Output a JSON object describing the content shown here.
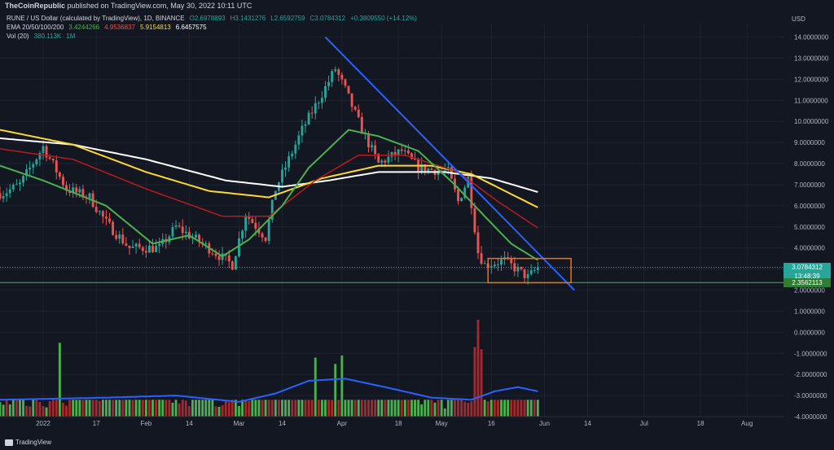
{
  "header": {
    "brand": "TheCoinRepublic",
    "publish_text": "published on TradingView.com, May 30, 2022 10:11 UTC"
  },
  "legend": {
    "symbol_line": "RUNE / US Dollar (calculated by TradingView), 1D, BINANCE",
    "ohlc": [
      "O2.6978893",
      "H3.1431276",
      "L2.6592759",
      "C3.0784312",
      "+0.3809550 (+14.12%)"
    ],
    "ema_label": "EMA 20/50/100/200",
    "ema_values": [
      "3.4244266",
      "4.9536837",
      "5.9154813",
      "6.6457575"
    ],
    "vol_label": "Vol (20)",
    "vol_values": [
      "380.113K",
      "1M"
    ]
  },
  "axis": {
    "currency": "USD",
    "y_ticks": [
      "14.0000000",
      "13.0000000",
      "12.0000000",
      "11.0000000",
      "10.0000000",
      "9.0000000",
      "8.0000000",
      "7.0000000",
      "6.0000000",
      "5.0000000",
      "4.0000000",
      "3.0000000",
      "2.0000000",
      "1.0000000",
      "0.0000000",
      "-1.0000000",
      "-2.0000000",
      "-3.0000000",
      "-4.0000000"
    ],
    "x_ticks": [
      "2022",
      "17",
      "Feb",
      "14",
      "Mar",
      "14",
      "Apr",
      "18",
      "May",
      "16",
      "Jun",
      "14",
      "Jul",
      "18",
      "Aug"
    ]
  },
  "price_tags": {
    "last_price": "3.0784312",
    "countdown": "13:48:39",
    "support_price": "2.3562113"
  },
  "colors": {
    "background": "#131722",
    "up": "#26a69a",
    "down": "#ef5350",
    "ema20": "#4caf50",
    "ema50": "#b71c1c",
    "ema100": "#fdd835",
    "ema200": "#ffffff",
    "trendline": "#2962ff",
    "box": "#ff6d00",
    "vol_ma": "#2962ff",
    "vol_up": "#4caf50",
    "vol_down": "#a5282c"
  },
  "chart_data": {
    "type": "candlestick",
    "title": "RUNE / US Dollar (calculated by TradingView), 1D, BINANCE",
    "ylim": [
      -4,
      14.6
    ],
    "x_range": [
      "2021-12-19",
      "2022-08-12"
    ],
    "anchors": {
      "price_path": [
        [
          "2021-12-20",
          6.6
        ],
        [
          "2021-12-25",
          7.0
        ],
        [
          "2022-01-01",
          8.8
        ],
        [
          "2022-01-08",
          6.8
        ],
        [
          "2022-01-15",
          6.4
        ],
        [
          "2022-01-20",
          5.2
        ],
        [
          "2022-01-27",
          4.0
        ],
        [
          "2022-02-05",
          4.0
        ],
        [
          "2022-02-10",
          5.0
        ],
        [
          "2022-02-18",
          4.2
        ],
        [
          "2022-02-27",
          3.2
        ],
        [
          "2022-03-03",
          5.6
        ],
        [
          "2022-03-09",
          4.5
        ],
        [
          "2022-03-12",
          6.8
        ],
        [
          "2022-03-20",
          9.6
        ],
        [
          "2022-03-27",
          11.6
        ],
        [
          "2022-03-30",
          12.5
        ],
        [
          "2022-04-02",
          11.5
        ],
        [
          "2022-04-07",
          9.6
        ],
        [
          "2022-04-12",
          8.0
        ],
        [
          "2022-04-19",
          8.6
        ],
        [
          "2022-04-24",
          7.8
        ],
        [
          "2022-05-03",
          7.6
        ],
        [
          "2022-05-06",
          6.2
        ],
        [
          "2022-05-09",
          7.3
        ],
        [
          "2022-05-12",
          3.8
        ],
        [
          "2022-05-14",
          3.2
        ],
        [
          "2022-05-20",
          3.4
        ],
        [
          "2022-05-27",
          2.6
        ],
        [
          "2022-05-30",
          3.08
        ]
      ],
      "ema20": [
        [
          "2021-12-19",
          7.9
        ],
        [
          "2022-01-01",
          7.2
        ],
        [
          "2022-01-20",
          6.0
        ],
        [
          "2022-02-03",
          4.2
        ],
        [
          "2022-02-14",
          4.6
        ],
        [
          "2022-02-24",
          3.6
        ],
        [
          "2022-03-04",
          4.4
        ],
        [
          "2022-03-14",
          6.0
        ],
        [
          "2022-03-22",
          7.8
        ],
        [
          "2022-04-03",
          9.6
        ],
        [
          "2022-04-12",
          9.3
        ],
        [
          "2022-04-24",
          8.6
        ],
        [
          "2022-05-05",
          7.0
        ],
        [
          "2022-05-14",
          5.5
        ],
        [
          "2022-05-22",
          4.2
        ],
        [
          "2022-05-30",
          3.42
        ]
      ],
      "ema50": [
        [
          "2021-12-19",
          8.7
        ],
        [
          "2022-01-10",
          8.2
        ],
        [
          "2022-02-01",
          6.8
        ],
        [
          "2022-02-24",
          5.5
        ],
        [
          "2022-03-10",
          5.5
        ],
        [
          "2022-03-24",
          7.2
        ],
        [
          "2022-04-06",
          8.4
        ],
        [
          "2022-04-20",
          8.4
        ],
        [
          "2022-05-06",
          7.6
        ],
        [
          "2022-05-18",
          6.2
        ],
        [
          "2022-05-30",
          4.95
        ]
      ],
      "ema100": [
        [
          "2021-12-19",
          9.6
        ],
        [
          "2022-01-10",
          8.9
        ],
        [
          "2022-02-01",
          7.6
        ],
        [
          "2022-02-20",
          6.7
        ],
        [
          "2022-03-10",
          6.4
        ],
        [
          "2022-03-26",
          7.3
        ],
        [
          "2022-04-12",
          7.9
        ],
        [
          "2022-04-28",
          7.9
        ],
        [
          "2022-05-10",
          7.5
        ],
        [
          "2022-05-30",
          5.92
        ]
      ],
      "ema200": [
        [
          "2021-12-19",
          9.2
        ],
        [
          "2022-01-10",
          8.9
        ],
        [
          "2022-02-01",
          8.2
        ],
        [
          "2022-02-25",
          7.2
        ],
        [
          "2022-03-14",
          6.9
        ],
        [
          "2022-03-28",
          7.2
        ],
        [
          "2022-04-12",
          7.6
        ],
        [
          "2022-05-02",
          7.6
        ],
        [
          "2022-05-16",
          7.3
        ],
        [
          "2022-05-30",
          6.65
        ]
      ],
      "volume": [
        [
          "2021-12-19",
          -3.3
        ],
        [
          "2022-01-15",
          -3.2
        ],
        [
          "2022-01-25",
          -2.5
        ],
        [
          "2022-02-14",
          -3.2
        ],
        [
          "2022-02-27",
          -3.2
        ],
        [
          "2022-03-10",
          -2.9
        ],
        [
          "2022-03-18",
          -2.4
        ],
        [
          "2022-03-27",
          -2.1
        ],
        [
          "2022-04-01",
          -2.0
        ],
        [
          "2022-04-06",
          -2.8
        ],
        [
          "2022-04-22",
          -3.2
        ],
        [
          "2022-05-08",
          -3.3
        ],
        [
          "2022-05-14",
          -3.0
        ],
        [
          "2022-05-19",
          -2.8
        ],
        [
          "2022-05-30",
          -2.6
        ]
      ],
      "volume_ma": [
        [
          "2021-12-19",
          -3.2
        ],
        [
          "2022-01-20",
          -3.1
        ],
        [
          "2022-02-10",
          -3.0
        ],
        [
          "2022-03-01",
          -3.3
        ],
        [
          "2022-03-12",
          -2.9
        ],
        [
          "2022-03-22",
          -2.3
        ],
        [
          "2022-04-02",
          -2.2
        ],
        [
          "2022-04-14",
          -2.6
        ],
        [
          "2022-04-28",
          -3.1
        ],
        [
          "2022-05-10",
          -3.2
        ],
        [
          "2022-05-17",
          -2.8
        ],
        [
          "2022-05-24",
          -2.6
        ],
        [
          "2022-05-30",
          -2.8
        ]
      ]
    },
    "volume_spikes": [
      [
        "2022-01-06",
        -0.5
      ],
      [
        "2022-03-24",
        -1.2
      ],
      [
        "2022-03-30",
        -1.5
      ],
      [
        "2022-04-01",
        -1.1
      ],
      [
        "2022-05-11",
        -0.7
      ],
      [
        "2022-05-12",
        0.6
      ],
      [
        "2022-05-13",
        -0.8
      ]
    ],
    "trendline": [
      [
        "2022-03-27",
        14.0
      ],
      [
        "2022-06-10",
        2.0
      ]
    ],
    "support_level": 2.3562113,
    "last_price": 3.0784312,
    "box": {
      "x": [
        "2022-05-15",
        "2022-06-09"
      ],
      "y": [
        2.35,
        3.5
      ]
    }
  }
}
